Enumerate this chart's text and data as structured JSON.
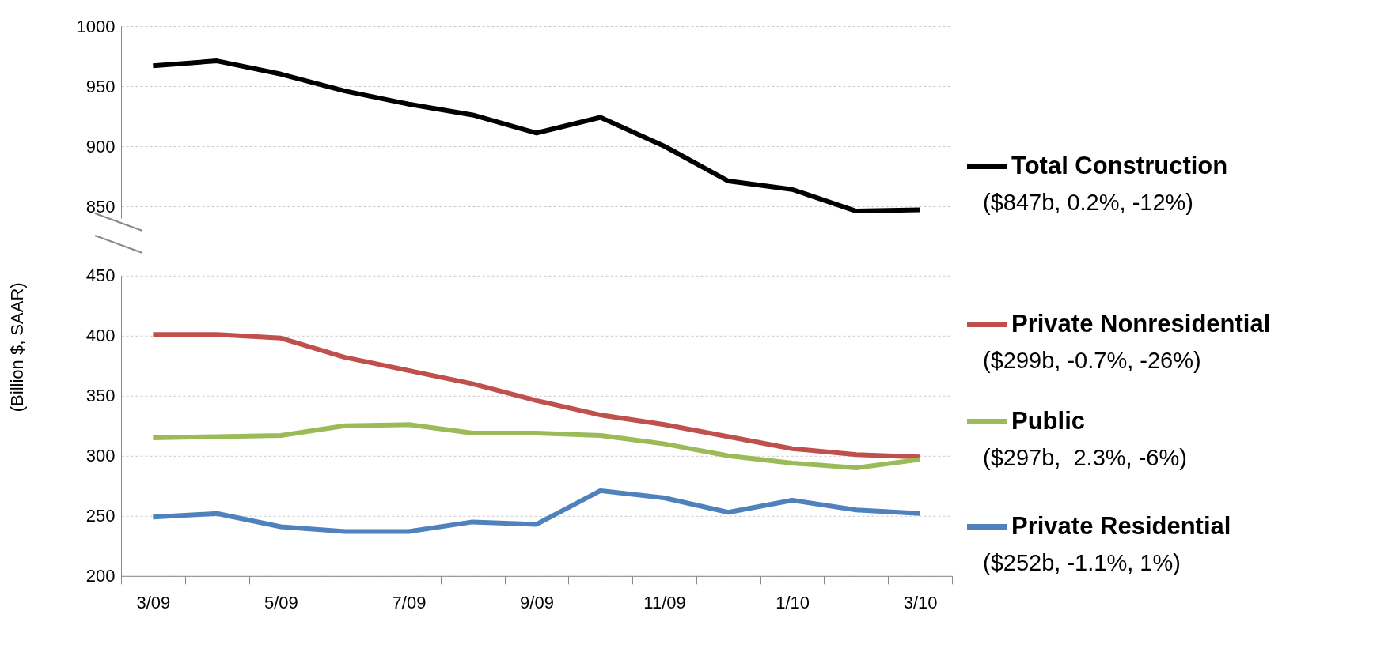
{
  "chart_data": [
    {
      "type": "line",
      "categories": [
        null,
        null,
        null,
        null,
        null,
        null,
        null,
        null,
        null,
        null,
        null,
        null,
        null
      ],
      "series": [
        {
          "name": "Total Construction",
          "color": "#000000",
          "values": [
            967,
            971,
            960,
            946,
            935,
            926,
            911,
            924,
            900,
            871,
            864,
            846,
            847
          ]
        }
      ],
      "ylim": [
        840,
        1000
      ],
      "yticks": [
        850,
        900,
        950,
        1000
      ],
      "grid": "y",
      "legend": "right",
      "tick_labels": "y",
      "annotations": [
        "($847b, 0.2%, -12%)"
      ]
    },
    {
      "type": "line",
      "categories": [
        "3/09",
        null,
        "5/09",
        null,
        "7/09",
        null,
        "9/09",
        null,
        "11/09",
        null,
        "1/10",
        null,
        "3/10"
      ],
      "series": [
        {
          "name": "Private Nonresidential",
          "color": "#c0504d",
          "values": [
            401,
            401,
            398,
            382,
            371,
            360,
            346,
            334,
            326,
            316,
            306,
            301,
            299
          ]
        },
        {
          "name": "Public",
          "color": "#9bbb59",
          "values": [
            315,
            316,
            317,
            325,
            326,
            319,
            319,
            317,
            310,
            300,
            294,
            290,
            297
          ]
        },
        {
          "name": "Private Residential",
          "color": "#4f81bd",
          "values": [
            249,
            252,
            241,
            237,
            237,
            245,
            243,
            271,
            265,
            253,
            263,
            255,
            252
          ]
        }
      ],
      "ylim": [
        200,
        450
      ],
      "yticks": [
        200,
        250,
        300,
        350,
        400,
        450
      ],
      "grid": "y",
      "legend": "right",
      "ylabel": "(Billion $, SAAR)",
      "annotations": [
        "($299b, -0.7%, -26%)",
        "($297b,  2.3%, -6%)",
        "($252b, -1.1%, 1%)"
      ]
    }
  ]
}
